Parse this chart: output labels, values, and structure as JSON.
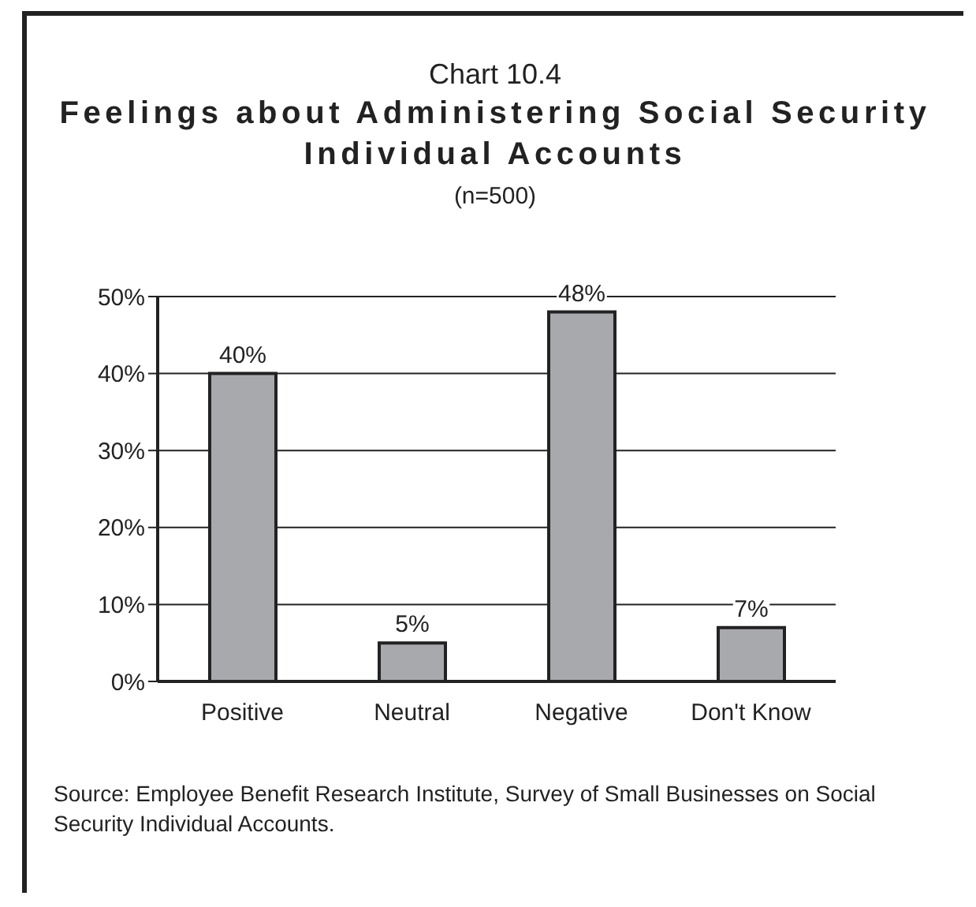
{
  "chart_data": {
    "type": "bar",
    "title": "Chart 10.4\nFeelings about Administering Social Security Individual Accounts",
    "subtitle": "(n=500)",
    "categories": [
      "Positive",
      "Neutral",
      "Negative",
      "Don't Know"
    ],
    "values": [
      40,
      5,
      48,
      7
    ],
    "value_labels": [
      "40%",
      "5%",
      "48%",
      "7%"
    ],
    "color": "#a7a9ac",
    "ylim": [
      0,
      50
    ],
    "yticks": [
      {
        "value": 0,
        "label": "0%"
      },
      {
        "value": 10,
        "label": "10%"
      },
      {
        "value": 20,
        "label": "20%"
      },
      {
        "value": 30,
        "label": "30%"
      },
      {
        "value": 40,
        "label": "40%"
      },
      {
        "value": 50,
        "label": "50%"
      }
    ],
    "grid": "y",
    "annotations": [
      "Source: Employee Benefit Research Institute, Survey of Small Businesses on Social Security Individual Accounts."
    ]
  }
}
